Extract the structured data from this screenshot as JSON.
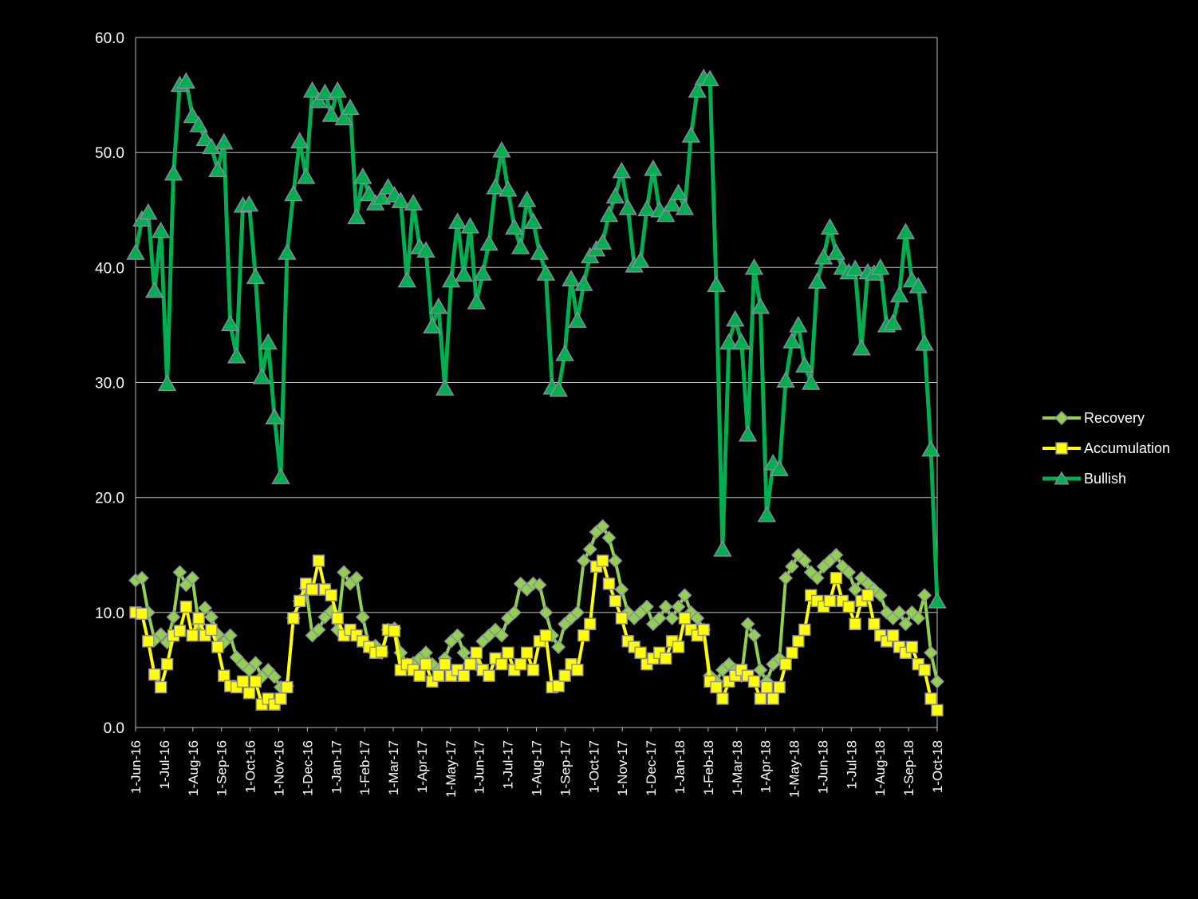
{
  "chart_data": {
    "type": "line",
    "title": "",
    "xlabel": "",
    "ylabel": "",
    "ylim": [
      0,
      60
    ],
    "y_ticks": [
      0,
      10,
      20,
      30,
      40,
      50,
      60
    ],
    "y_tick_labels": [
      "0.0",
      "10.0",
      "20.0",
      "30.0",
      "40.0",
      "50.0",
      "60.0"
    ],
    "grid": true,
    "legend_position": "right",
    "background": "#000000",
    "text_color": "#FFFFFF",
    "grid_color": "#BFBFBF",
    "x_ticks": [
      "1-Jun-16",
      "1-Jul-16",
      "1-Aug-16",
      "1-Sep-16",
      "1-Oct-16",
      "1-Nov-16",
      "1-Dec-16",
      "1-Jan-17",
      "1-Feb-17",
      "1-Mar-17",
      "1-Apr-17",
      "1-May-17",
      "1-Jun-17",
      "1-Jul-17",
      "1-Aug-17",
      "1-Sep-17",
      "1-Oct-17",
      "1-Nov-17",
      "1-Dec-17",
      "1-Jan-18",
      "1-Feb-18",
      "1-Mar-18",
      "1-Apr-18",
      "1-May-18",
      "1-Jun-18",
      "1-Jul-18",
      "1-Aug-18",
      "1-Sep-18",
      "1-Oct-18"
    ],
    "series": [
      {
        "name": "Recovery",
        "marker": "diamond",
        "color": "#92D050",
        "marker_outline": "#8E8AA0",
        "line_width": 4,
        "marker_size": 8,
        "values": [
          12.8,
          13.0,
          10.0,
          7.6,
          8.1,
          7.4,
          9.6,
          13.5,
          12.4,
          13.0,
          9.0,
          10.4,
          9.6,
          8.1,
          7.4,
          8.0,
          6.1,
          5.5,
          5.0,
          5.6,
          4.4,
          5.0,
          4.4,
          3.5,
          3.6,
          9.5,
          11.0,
          12.1,
          8.0,
          8.5,
          9.6,
          10.1,
          8.5,
          13.5,
          12.5,
          13.0,
          9.6,
          7.0,
          7.1,
          6.5,
          8.5,
          8.6,
          6.5,
          5.5,
          5.6,
          6.0,
          6.5,
          5.5,
          5.0,
          6.0,
          7.5,
          8.0,
          6.5,
          5.6,
          5.5,
          7.5,
          8.0,
          8.5,
          8.0,
          9.5,
          10.0,
          12.5,
          12.0,
          12.5,
          12.4,
          10.0,
          8.0,
          7.0,
          9.0,
          9.5,
          10.0,
          14.5,
          15.5,
          17.0,
          17.5,
          16.5,
          14.5,
          12.0,
          10.0,
          9.5,
          10.0,
          10.5,
          9.0,
          9.5,
          10.5,
          9.5,
          10.5,
          11.5,
          10.0,
          9.5,
          8.5,
          4.5,
          4.0,
          5.0,
          5.5,
          5.0,
          4.5,
          9.0,
          8.0,
          5.0,
          4.0,
          5.5,
          6.0,
          13.0,
          14.0,
          15.0,
          14.5,
          13.5,
          13.0,
          14.0,
          14.5,
          15.0,
          14.0,
          13.5,
          12.0,
          13.0,
          12.5,
          12.0,
          11.5,
          10.0,
          9.5,
          10.0,
          9.0,
          10.0,
          9.5,
          11.5,
          6.5,
          4.0
        ]
      },
      {
        "name": "Accumulation",
        "marker": "square",
        "color": "#FFFF00",
        "marker_outline": "#8E8AA0",
        "line_width": 4,
        "marker_size": 7,
        "values": [
          10.0,
          9.9,
          7.5,
          4.6,
          3.5,
          5.5,
          8.0,
          8.4,
          10.5,
          8.0,
          9.5,
          8.0,
          8.5,
          7.0,
          4.5,
          3.6,
          3.5,
          4.0,
          3.0,
          4.0,
          2.0,
          2.5,
          2.0,
          2.5,
          3.5,
          9.5,
          11.0,
          12.5,
          12.0,
          14.5,
          12.0,
          11.5,
          9.5,
          8.0,
          8.5,
          8.0,
          7.5,
          7.0,
          6.5,
          6.6,
          8.5,
          8.4,
          5.0,
          5.5,
          5.0,
          4.5,
          5.5,
          4.0,
          4.5,
          5.5,
          4.5,
          5.0,
          4.5,
          5.5,
          6.5,
          5.0,
          4.5,
          6.0,
          5.5,
          6.5,
          5.0,
          5.5,
          6.5,
          5.0,
          7.5,
          8.0,
          3.5,
          3.6,
          4.5,
          5.5,
          5.0,
          8.0,
          9.0,
          14.0,
          14.5,
          12.5,
          11.0,
          9.5,
          7.5,
          7.0,
          6.5,
          5.5,
          6.0,
          6.5,
          6.0,
          7.5,
          7.0,
          9.5,
          8.5,
          8.0,
          8.5,
          4.0,
          3.5,
          2.5,
          4.0,
          4.5,
          5.0,
          4.5,
          4.0,
          2.5,
          3.5,
          2.5,
          3.5,
          5.5,
          6.5,
          7.5,
          8.5,
          11.5,
          11.0,
          10.5,
          11.0,
          13.0,
          11.0,
          10.5,
          9.0,
          11.0,
          11.5,
          9.0,
          8.0,
          7.5,
          8.0,
          7.0,
          6.5,
          7.0,
          5.5,
          5.0,
          2.5,
          1.5
        ]
      },
      {
        "name": "Bullish",
        "marker": "triangle",
        "color": "#00B050",
        "marker_outline": "#8E8AA0",
        "line_width": 5,
        "marker_size": 10,
        "values": [
          41.3,
          44.2,
          44.8,
          38.0,
          43.2,
          29.9,
          48.2,
          55.9,
          56.2,
          53.2,
          52.4,
          51.2,
          50.5,
          48.5,
          50.9,
          35.1,
          32.3,
          45.4,
          45.5,
          39.2,
          30.5,
          33.5,
          27.0,
          21.8,
          41.3,
          46.4,
          51.0,
          47.9,
          55.4,
          54.5,
          55.2,
          53.3,
          55.4,
          53.0,
          53.9,
          44.4,
          47.9,
          46.4,
          45.6,
          46.1,
          47.0,
          46.3,
          45.8,
          38.9,
          45.6,
          41.8,
          41.5,
          34.9,
          36.6,
          29.5,
          38.9,
          44.0,
          39.4,
          43.6,
          37.0,
          39.5,
          42.1,
          47.0,
          50.2,
          46.8,
          43.5,
          41.8,
          45.9,
          44.0,
          41.3,
          39.5,
          29.6,
          29.4,
          32.5,
          39.0,
          35.4,
          38.6,
          41.0,
          41.6,
          42.2,
          44.6,
          46.2,
          48.4,
          45.2,
          40.2,
          40.6,
          45.1,
          48.6,
          45.0,
          44.6,
          45.5,
          46.5,
          45.2,
          51.5,
          55.4,
          56.5,
          56.4,
          38.5,
          15.5,
          33.5,
          35.5,
          33.5,
          25.5,
          40.0,
          36.6,
          18.5,
          23.0,
          22.5,
          30.2,
          33.6,
          35.0,
          31.5,
          30.0,
          38.8,
          40.9,
          43.5,
          41.3,
          40.0,
          39.6,
          39.9,
          33.0,
          39.6,
          39.5,
          40.0,
          35.0,
          35.2,
          37.6,
          43.1,
          38.9,
          38.4,
          33.4,
          24.2,
          11.0
        ]
      }
    ]
  }
}
